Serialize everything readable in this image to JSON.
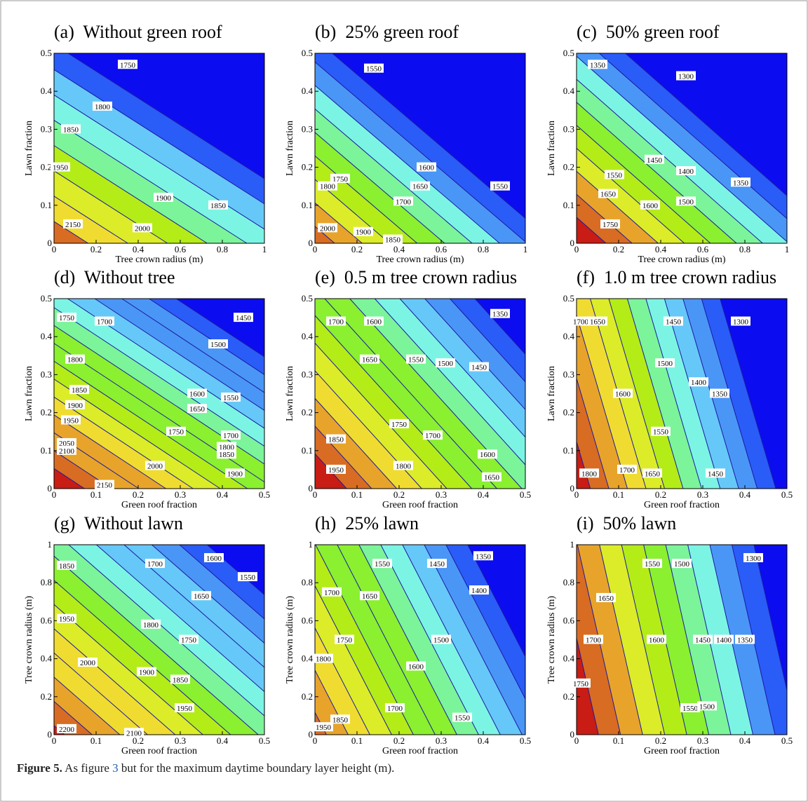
{
  "chart_data": [
    {
      "type": "contour",
      "title": "(a)  Without green roof",
      "xlabel": "Tree crown radius (m)",
      "ylabel": "Lawn fraction",
      "xlim": [
        0,
        1
      ],
      "xticks": [
        0,
        0.2,
        0.4,
        0.6,
        0.8,
        1
      ],
      "ylim": [
        0,
        0.5
      ],
      "yticks": [
        0,
        0.1,
        0.2,
        0.3,
        0.4,
        0.5
      ],
      "levels": [
        1750,
        1800,
        1850,
        1900,
        1950,
        2000,
        2050,
        2100,
        2150
      ],
      "labels": [
        {
          "x": 0.35,
          "y": 0.47,
          "value": 1750
        },
        {
          "x": 0.23,
          "y": 0.36,
          "value": 1800
        },
        {
          "x": 0.08,
          "y": 0.3,
          "value": 1850
        },
        {
          "x": 0.03,
          "y": 0.2,
          "value": 1950
        },
        {
          "x": 0.52,
          "y": 0.12,
          "value": 1900
        },
        {
          "x": 0.78,
          "y": 0.1,
          "value": 1850
        },
        {
          "x": 0.42,
          "y": 0.04,
          "value": 2000
        },
        {
          "x": 0.09,
          "y": 0.05,
          "value": 2150
        }
      ]
    },
    {
      "type": "contour",
      "title": "(b)  25% green roof",
      "xlabel": "Tree crown radius (m)",
      "ylabel": "Lawn fraction",
      "xlim": [
        0,
        1
      ],
      "xticks": [
        0,
        0.2,
        0.4,
        0.6,
        0.8,
        1
      ],
      "ylim": [
        0,
        0.5
      ],
      "yticks": [
        0,
        0.1,
        0.2,
        0.3,
        0.4,
        0.5
      ],
      "levels": [
        1550,
        1600,
        1650,
        1700,
        1750,
        1800,
        1850,
        1900,
        1950,
        2000
      ],
      "labels": [
        {
          "x": 0.28,
          "y": 0.46,
          "value": 1550
        },
        {
          "x": 0.53,
          "y": 0.2,
          "value": 1600
        },
        {
          "x": 0.88,
          "y": 0.15,
          "value": 1550
        },
        {
          "x": 0.5,
          "y": 0.15,
          "value": 1650
        },
        {
          "x": 0.12,
          "y": 0.17,
          "value": 1750
        },
        {
          "x": 0.06,
          "y": 0.15,
          "value": 1800
        },
        {
          "x": 0.42,
          "y": 0.11,
          "value": 1700
        },
        {
          "x": 0.06,
          "y": 0.04,
          "value": 2000
        },
        {
          "x": 0.23,
          "y": 0.03,
          "value": 1900
        },
        {
          "x": 0.37,
          "y": 0.01,
          "value": 1850
        }
      ]
    },
    {
      "type": "contour",
      "title": "(c)  50% green roof",
      "xlabel": "Tree crown radius (m)",
      "ylabel": "Lawn fraction",
      "xlim": [
        0,
        1
      ],
      "xticks": [
        0,
        0.2,
        0.4,
        0.6,
        0.8,
        1
      ],
      "ylim": [
        0,
        0.5
      ],
      "yticks": [
        0,
        0.1,
        0.2,
        0.3,
        0.4,
        0.5
      ],
      "levels": [
        1300,
        1350,
        1400,
        1450,
        1500,
        1550,
        1600,
        1650,
        1700,
        1750
      ],
      "labels": [
        {
          "x": 0.1,
          "y": 0.47,
          "value": 1350
        },
        {
          "x": 0.52,
          "y": 0.44,
          "value": 1300
        },
        {
          "x": 0.37,
          "y": 0.22,
          "value": 1450
        },
        {
          "x": 0.52,
          "y": 0.19,
          "value": 1400
        },
        {
          "x": 0.78,
          "y": 0.16,
          "value": 1350
        },
        {
          "x": 0.18,
          "y": 0.18,
          "value": 1550
        },
        {
          "x": 0.52,
          "y": 0.11,
          "value": 1500
        },
        {
          "x": 0.15,
          "y": 0.13,
          "value": 1650
        },
        {
          "x": 0.35,
          "y": 0.1,
          "value": 1600
        },
        {
          "x": 0.16,
          "y": 0.05,
          "value": 1750
        }
      ]
    },
    {
      "type": "contour",
      "title": "(d)  Without tree",
      "xlabel": "Green roof fraction",
      "ylabel": "Lawn fraction",
      "xlim": [
        0,
        0.5
      ],
      "xticks": [
        0,
        0.1,
        0.2,
        0.3,
        0.4,
        0.5
      ],
      "ylim": [
        0,
        0.5
      ],
      "yticks": [
        0,
        0.1,
        0.2,
        0.3,
        0.4,
        0.5
      ],
      "levels": [
        1450,
        1500,
        1550,
        1600,
        1650,
        1700,
        1750,
        1800,
        1850,
        1900,
        1950,
        2000,
        2050,
        2100,
        2150
      ],
      "labels": [
        {
          "x": 0.03,
          "y": 0.45,
          "value": 1750
        },
        {
          "x": 0.12,
          "y": 0.44,
          "value": 1700
        },
        {
          "x": 0.45,
          "y": 0.45,
          "value": 1450
        },
        {
          "x": 0.39,
          "y": 0.38,
          "value": 1500
        },
        {
          "x": 0.05,
          "y": 0.34,
          "value": 1800
        },
        {
          "x": 0.06,
          "y": 0.26,
          "value": 1850
        },
        {
          "x": 0.05,
          "y": 0.22,
          "value": 1900
        },
        {
          "x": 0.34,
          "y": 0.25,
          "value": 1600
        },
        {
          "x": 0.42,
          "y": 0.24,
          "value": 1550
        },
        {
          "x": 0.34,
          "y": 0.21,
          "value": 1650
        },
        {
          "x": 0.04,
          "y": 0.18,
          "value": 1950
        },
        {
          "x": 0.29,
          "y": 0.15,
          "value": 1750
        },
        {
          "x": 0.42,
          "y": 0.14,
          "value": 1700
        },
        {
          "x": 0.03,
          "y": 0.12,
          "value": 2050
        },
        {
          "x": 0.41,
          "y": 0.11,
          "value": 1800
        },
        {
          "x": 0.03,
          "y": 0.1,
          "value": 2100
        },
        {
          "x": 0.41,
          "y": 0.09,
          "value": 1850
        },
        {
          "x": 0.24,
          "y": 0.06,
          "value": 2000
        },
        {
          "x": 0.43,
          "y": 0.04,
          "value": 1900
        },
        {
          "x": 0.12,
          "y": 0.01,
          "value": 2150
        }
      ]
    },
    {
      "type": "contour",
      "title": "(e)  0.5 m tree crown radius",
      "xlabel": "Green roof fraction",
      "ylabel": "Lawn fraction",
      "xlim": [
        0,
        0.5
      ],
      "xticks": [
        0,
        0.1,
        0.2,
        0.3,
        0.4,
        0.5
      ],
      "ylim": [
        0,
        0.5
      ],
      "yticks": [
        0,
        0.1,
        0.2,
        0.3,
        0.4,
        0.5
      ],
      "levels": [
        1350,
        1400,
        1450,
        1500,
        1550,
        1600,
        1650,
        1700,
        1750,
        1800,
        1850,
        1900,
        1950
      ],
      "labels": [
        {
          "x": 0.05,
          "y": 0.44,
          "value": 1700
        },
        {
          "x": 0.14,
          "y": 0.44,
          "value": 1600
        },
        {
          "x": 0.24,
          "y": 0.34,
          "value": 1550
        },
        {
          "x": 0.13,
          "y": 0.34,
          "value": 1650
        },
        {
          "x": 0.31,
          "y": 0.33,
          "value": 1500
        },
        {
          "x": 0.39,
          "y": 0.32,
          "value": 1450
        },
        {
          "x": 0.44,
          "y": 0.46,
          "value": 1350
        },
        {
          "x": 0.2,
          "y": 0.17,
          "value": 1750
        },
        {
          "x": 0.28,
          "y": 0.14,
          "value": 1700
        },
        {
          "x": 0.41,
          "y": 0.09,
          "value": 1600
        },
        {
          "x": 0.05,
          "y": 0.13,
          "value": 1850
        },
        {
          "x": 0.21,
          "y": 0.06,
          "value": 1800
        },
        {
          "x": 0.42,
          "y": 0.03,
          "value": 1650
        },
        {
          "x": 0.05,
          "y": 0.05,
          "value": 1950
        }
      ]
    },
    {
      "type": "contour",
      "title": "(f)  1.0 m tree crown radius",
      "xlabel": "Green roof fraction",
      "ylabel": "Lawn fraction",
      "xlim": [
        0,
        0.5
      ],
      "xticks": [
        0,
        0.1,
        0.2,
        0.3,
        0.4,
        0.5
      ],
      "ylim": [
        0,
        0.5
      ],
      "yticks": [
        0,
        0.1,
        0.2,
        0.3,
        0.4,
        0.5
      ],
      "levels": [
        1300,
        1350,
        1400,
        1450,
        1500,
        1550,
        1600,
        1650,
        1700,
        1750,
        1800
      ],
      "labels": [
        {
          "x": 0.01,
          "y": 0.44,
          "value": 1700
        },
        {
          "x": 0.05,
          "y": 0.44,
          "value": 1650
        },
        {
          "x": 0.23,
          "y": 0.44,
          "value": 1450
        },
        {
          "x": 0.39,
          "y": 0.44,
          "value": 1300
        },
        {
          "x": 0.21,
          "y": 0.33,
          "value": 1500
        },
        {
          "x": 0.29,
          "y": 0.28,
          "value": 1400
        },
        {
          "x": 0.34,
          "y": 0.25,
          "value": 1350
        },
        {
          "x": 0.11,
          "y": 0.25,
          "value": 1600
        },
        {
          "x": 0.2,
          "y": 0.15,
          "value": 1550
        },
        {
          "x": 0.12,
          "y": 0.05,
          "value": 1700
        },
        {
          "x": 0.18,
          "y": 0.04,
          "value": 1650
        },
        {
          "x": 0.33,
          "y": 0.04,
          "value": 1450
        },
        {
          "x": 0.03,
          "y": 0.04,
          "value": 1800
        }
      ]
    },
    {
      "type": "contour",
      "title": "(g)  Without lawn",
      "xlabel": "Green roof fraction",
      "ylabel": "Tree crown radius (m)",
      "xlim": [
        0,
        0.5
      ],
      "xticks": [
        0,
        0.1,
        0.2,
        0.3,
        0.4,
        0.5
      ],
      "ylim": [
        0,
        1
      ],
      "yticks": [
        0,
        0.2,
        0.4,
        0.6,
        0.8,
        1
      ],
      "levels": [
        1550,
        1600,
        1650,
        1700,
        1750,
        1800,
        1850,
        1900,
        1950,
        2000,
        2050,
        2100,
        2150,
        2200
      ],
      "labels": [
        {
          "x": 0.03,
          "y": 0.89,
          "value": 1850
        },
        {
          "x": 0.24,
          "y": 0.9,
          "value": 1700
        },
        {
          "x": 0.38,
          "y": 0.93,
          "value": 1600
        },
        {
          "x": 0.46,
          "y": 0.83,
          "value": 1550
        },
        {
          "x": 0.35,
          "y": 0.73,
          "value": 1650
        },
        {
          "x": 0.03,
          "y": 0.61,
          "value": 1950
        },
        {
          "x": 0.23,
          "y": 0.58,
          "value": 1800
        },
        {
          "x": 0.32,
          "y": 0.5,
          "value": 1750
        },
        {
          "x": 0.08,
          "y": 0.38,
          "value": 2000
        },
        {
          "x": 0.22,
          "y": 0.33,
          "value": 1900
        },
        {
          "x": 0.3,
          "y": 0.29,
          "value": 1850
        },
        {
          "x": 0.31,
          "y": 0.14,
          "value": 1950
        },
        {
          "x": 0.03,
          "y": 0.03,
          "value": 2200
        },
        {
          "x": 0.19,
          "y": 0.01,
          "value": 2100
        }
      ]
    },
    {
      "type": "contour",
      "title": "(h)  25% lawn",
      "xlabel": "Green roof fraction",
      "ylabel": "Tree crown radius (m)",
      "xlim": [
        0,
        0.5
      ],
      "xticks": [
        0,
        0.1,
        0.2,
        0.3,
        0.4,
        0.5
      ],
      "ylim": [
        0,
        1
      ],
      "yticks": [
        0,
        0.2,
        0.4,
        0.6,
        0.8,
        1
      ],
      "levels": [
        1350,
        1400,
        1450,
        1500,
        1550,
        1600,
        1650,
        1700,
        1750,
        1800,
        1850,
        1900,
        1950
      ],
      "labels": [
        {
          "x": 0.16,
          "y": 0.9,
          "value": 1550
        },
        {
          "x": 0.29,
          "y": 0.9,
          "value": 1450
        },
        {
          "x": 0.4,
          "y": 0.94,
          "value": 1350
        },
        {
          "x": 0.39,
          "y": 0.76,
          "value": 1400
        },
        {
          "x": 0.04,
          "y": 0.75,
          "value": 1700
        },
        {
          "x": 0.13,
          "y": 0.73,
          "value": 1650
        },
        {
          "x": 0.07,
          "y": 0.5,
          "value": 1750
        },
        {
          "x": 0.02,
          "y": 0.4,
          "value": 1800
        },
        {
          "x": 0.3,
          "y": 0.5,
          "value": 1500
        },
        {
          "x": 0.24,
          "y": 0.36,
          "value": 1600
        },
        {
          "x": 0.19,
          "y": 0.14,
          "value": 1700
        },
        {
          "x": 0.35,
          "y": 0.09,
          "value": 1550
        },
        {
          "x": 0.02,
          "y": 0.04,
          "value": 1950
        },
        {
          "x": 0.06,
          "y": 0.08,
          "value": 1850
        }
      ]
    },
    {
      "type": "contour",
      "title": "(i)  50% lawn",
      "xlabel": "Green roof fraction",
      "ylabel": "Tree crown radius (m)",
      "xlim": [
        0,
        0.5
      ],
      "xticks": [
        0,
        0.1,
        0.2,
        0.3,
        0.4,
        0.5
      ],
      "ylim": [
        0,
        1
      ],
      "yticks": [
        0,
        0.2,
        0.4,
        0.6,
        0.8,
        1
      ],
      "levels": [
        1300,
        1350,
        1400,
        1450,
        1500,
        1550,
        1600,
        1650,
        1700,
        1750
      ],
      "labels": [
        {
          "x": 0.18,
          "y": 0.9,
          "value": 1550
        },
        {
          "x": 0.25,
          "y": 0.9,
          "value": 1500
        },
        {
          "x": 0.42,
          "y": 0.93,
          "value": 1300
        },
        {
          "x": 0.07,
          "y": 0.72,
          "value": 1650
        },
        {
          "x": 0.04,
          "y": 0.5,
          "value": 1700
        },
        {
          "x": 0.19,
          "y": 0.5,
          "value": 1600
        },
        {
          "x": 0.3,
          "y": 0.5,
          "value": 1450
        },
        {
          "x": 0.35,
          "y": 0.5,
          "value": 1400
        },
        {
          "x": 0.4,
          "y": 0.5,
          "value": 1350
        },
        {
          "x": 0.01,
          "y": 0.27,
          "value": 1750
        },
        {
          "x": 0.27,
          "y": 0.14,
          "value": 1550
        },
        {
          "x": 0.31,
          "y": 0.15,
          "value": 1500
        }
      ]
    }
  ],
  "colormap": [
    "#0c0cf0",
    "#2a5cf8",
    "#4a96f6",
    "#66c8f8",
    "#7cf4e4",
    "#7cf49a",
    "#8af030",
    "#b4ec18",
    "#dcec28",
    "#f0dc30",
    "#e8a42a",
    "#d86c22",
    "#c81c14"
  ],
  "caption": {
    "label": "Figure 5.",
    "before": " As figure ",
    "ref": "3",
    "after": " but for the maximum daytime boundary layer height (m)."
  }
}
